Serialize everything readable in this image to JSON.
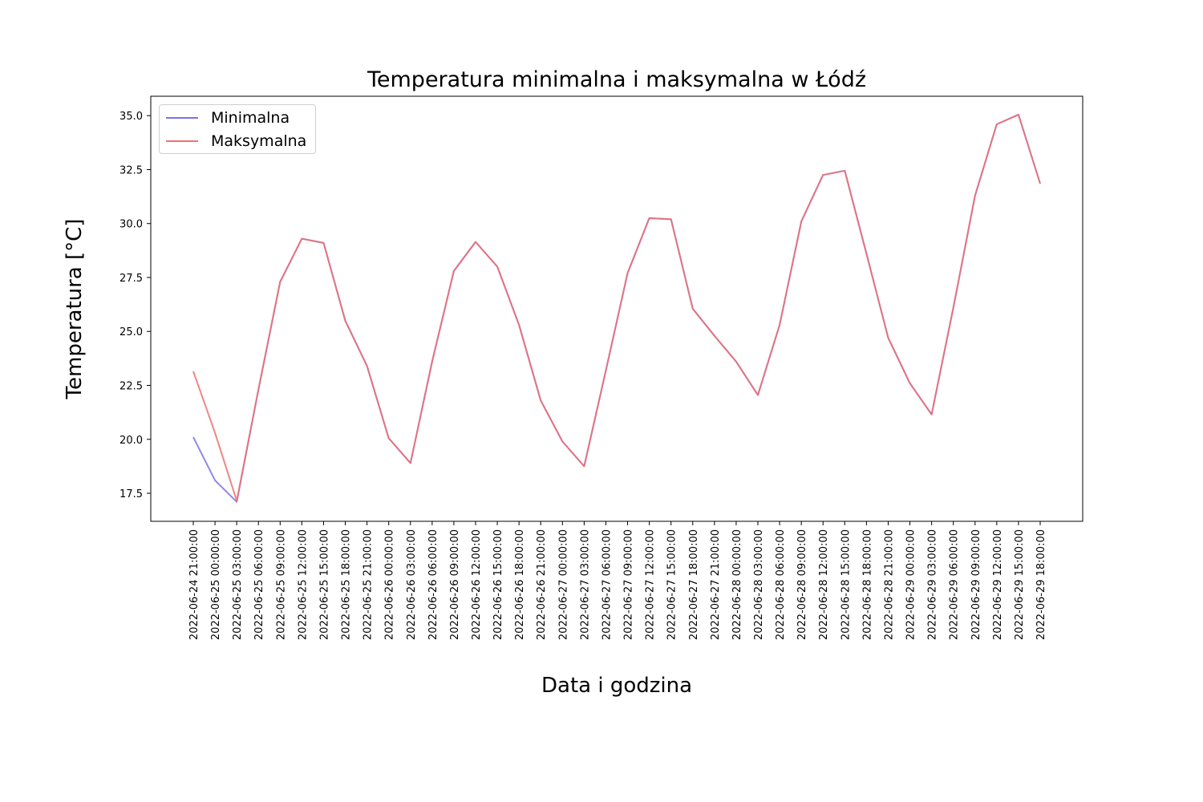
{
  "chart_data": {
    "type": "line",
    "title": "Temperatura minimalna i maksymalna w Łódź",
    "xlabel": "Data i godzina",
    "ylabel": "Temperatura [°C]",
    "ylim": [
      16.2,
      35.9
    ],
    "yticks": [
      "17.5",
      "20.0",
      "22.5",
      "25.0",
      "27.5",
      "30.0",
      "32.5",
      "35.0"
    ],
    "grid": false,
    "legend_position": "top-left",
    "categories": [
      "2022-06-24 21:00:00",
      "2022-06-25 00:00:00",
      "2022-06-25 03:00:00",
      "2022-06-25 06:00:00",
      "2022-06-25 09:00:00",
      "2022-06-25 12:00:00",
      "2022-06-25 15:00:00",
      "2022-06-25 18:00:00",
      "2022-06-25 21:00:00",
      "2022-06-26 00:00:00",
      "2022-06-26 03:00:00",
      "2022-06-26 06:00:00",
      "2022-06-26 09:00:00",
      "2022-06-26 12:00:00",
      "2022-06-26 15:00:00",
      "2022-06-26 18:00:00",
      "2022-06-26 21:00:00",
      "2022-06-27 00:00:00",
      "2022-06-27 03:00:00",
      "2022-06-27 06:00:00",
      "2022-06-27 09:00:00",
      "2022-06-27 12:00:00",
      "2022-06-27 15:00:00",
      "2022-06-27 18:00:00",
      "2022-06-27 21:00:00",
      "2022-06-28 00:00:00",
      "2022-06-28 03:00:00",
      "2022-06-28 06:00:00",
      "2022-06-28 09:00:00",
      "2022-06-28 12:00:00",
      "2022-06-28 15:00:00",
      "2022-06-28 18:00:00",
      "2022-06-28 21:00:00",
      "2022-06-29 00:00:00",
      "2022-06-29 03:00:00",
      "2022-06-29 06:00:00",
      "2022-06-29 09:00:00",
      "2022-06-29 12:00:00",
      "2022-06-29 15:00:00",
      "2022-06-29 18:00:00"
    ],
    "series": [
      {
        "name": "Minimalna",
        "color": "#7b73e6",
        "values": [
          20.1,
          18.1,
          17.1,
          22.3,
          27.3,
          29.3,
          29.1,
          25.5,
          23.4,
          20.05,
          18.9,
          23.6,
          27.8,
          29.15,
          28.0,
          25.3,
          21.8,
          19.9,
          18.75,
          23.2,
          27.7,
          30.25,
          30.2,
          26.05,
          24.8,
          23.6,
          22.05,
          25.3,
          30.1,
          32.25,
          32.45,
          28.6,
          24.7,
          22.6,
          21.15,
          26.1,
          31.3,
          34.6,
          35.05,
          31.85
        ]
      },
      {
        "name": "Maksymalna",
        "color": "#f07070",
        "values": [
          23.15,
          20.3,
          17.15,
          22.3,
          27.3,
          29.3,
          29.1,
          25.5,
          23.4,
          20.05,
          18.9,
          23.6,
          27.8,
          29.15,
          28.0,
          25.3,
          21.8,
          19.9,
          18.75,
          23.2,
          27.7,
          30.25,
          30.2,
          26.05,
          24.8,
          23.6,
          22.05,
          25.3,
          30.1,
          32.25,
          32.45,
          28.6,
          24.7,
          22.6,
          21.15,
          26.1,
          31.3,
          34.6,
          35.05,
          31.85
        ]
      }
    ]
  }
}
